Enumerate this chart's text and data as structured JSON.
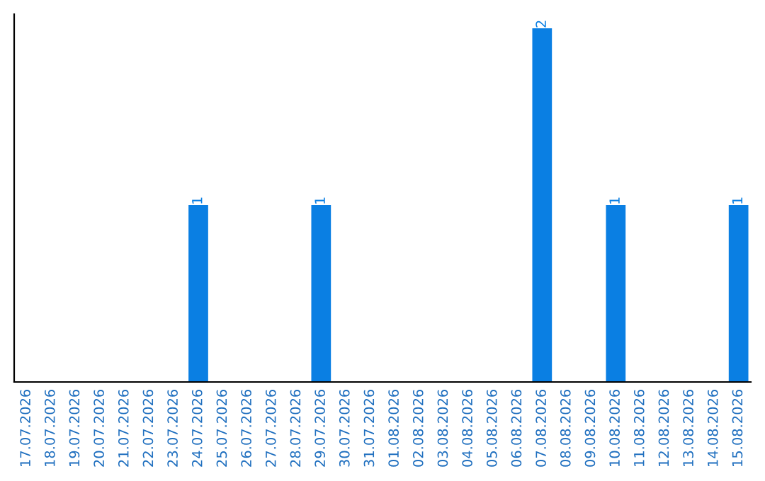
{
  "chart_data": {
    "type": "bar",
    "categories": [
      "17.07.2026",
      "18.07.2026",
      "19.07.2026",
      "20.07.2026",
      "21.07.2026",
      "22.07.2026",
      "23.07.2026",
      "24.07.2026",
      "25.07.2026",
      "26.07.2026",
      "27.07.2026",
      "28.07.2026",
      "29.07.2026",
      "30.07.2026",
      "31.07.2026",
      "01.08.2026",
      "02.08.2026",
      "03.08.2026",
      "04.08.2026",
      "05.08.2026",
      "06.08.2026",
      "07.08.2026",
      "08.08.2026",
      "09.08.2026",
      "10.08.2026",
      "11.08.2026",
      "12.08.2026",
      "13.08.2026",
      "14.08.2026",
      "15.08.2026"
    ],
    "values": [
      0,
      0,
      0,
      0,
      0,
      0,
      0,
      1,
      0,
      0,
      0,
      0,
      1,
      0,
      0,
      0,
      0,
      0,
      0,
      0,
      0,
      2,
      0,
      0,
      1,
      0,
      0,
      0,
      0,
      1
    ],
    "value_labels": [
      null,
      null,
      null,
      null,
      null,
      null,
      null,
      "1",
      null,
      null,
      null,
      null,
      "1",
      null,
      null,
      null,
      null,
      null,
      null,
      null,
      null,
      "2",
      null,
      null,
      "1",
      null,
      null,
      null,
      null,
      "1"
    ],
    "color": "#0a7fe3",
    "ylim": [
      0,
      2.08
    ],
    "tick_labels": "x",
    "grid": false,
    "legend": false
  }
}
